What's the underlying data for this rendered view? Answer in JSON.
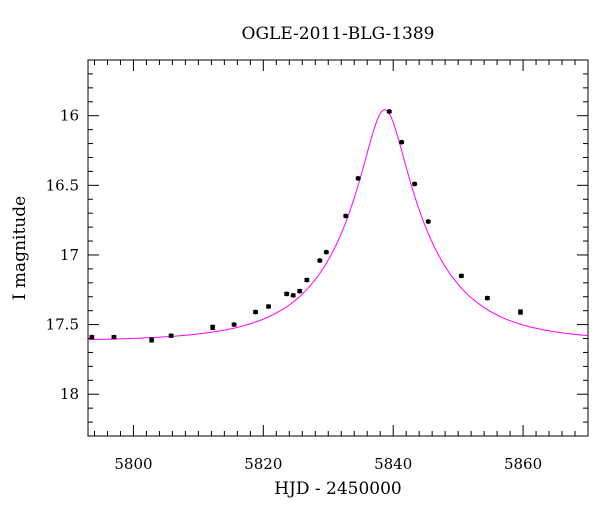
{
  "chart_data": {
    "type": "scatter",
    "title": "OGLE-2011-BLG-1389",
    "xlabel": "HJD - 2450000",
    "ylabel": "I magnitude",
    "xlim": [
      5793,
      5870
    ],
    "ylim": [
      18.3,
      15.6
    ],
    "y_inverted": true,
    "xticks": [
      5800,
      5820,
      5840,
      5860
    ],
    "xtick_labels": [
      "5800",
      "5820",
      "5840",
      "5860"
    ],
    "yticks": [
      16,
      16.5,
      17,
      17.5,
      18
    ],
    "ytick_labels": [
      "16",
      "16.5",
      "17",
      "17.5",
      "18"
    ],
    "grid": false,
    "series": [
      {
        "kind": "points",
        "color": "#000000",
        "x": [
          5793.6,
          5797.0,
          5802.8,
          5805.8,
          5812.2,
          5815.5,
          5818.8,
          5820.8,
          5823.6,
          5824.6,
          5825.6,
          5826.7,
          5828.7,
          5829.7,
          5832.7,
          5834.6,
          5839.4,
          5841.3,
          5843.3,
          5845.4,
          5850.5,
          5854.5,
          5859.6
        ],
        "y": [
          17.59,
          17.59,
          17.61,
          17.58,
          17.52,
          17.5,
          17.41,
          17.37,
          17.28,
          17.29,
          17.26,
          17.18,
          17.04,
          16.98,
          16.72,
          16.45,
          15.97,
          16.19,
          16.49,
          16.76,
          17.15,
          17.31,
          17.41
        ],
        "yerr": [
          0.01,
          0.01,
          0.015,
          0.01,
          0.015,
          0.01,
          0.01,
          0.01,
          0.01,
          0.01,
          0.01,
          0.01,
          0.008,
          0.008,
          0.008,
          0.008,
          0.008,
          0.008,
          0.008,
          0.008,
          0.01,
          0.01,
          0.015
        ]
      },
      {
        "kind": "model",
        "color": "#ff00ff",
        "model": {
          "type": "paczynski",
          "t0": 5838.7,
          "u0": 0.22,
          "tE": 13.5,
          "baseline": 17.62
        }
      }
    ]
  }
}
